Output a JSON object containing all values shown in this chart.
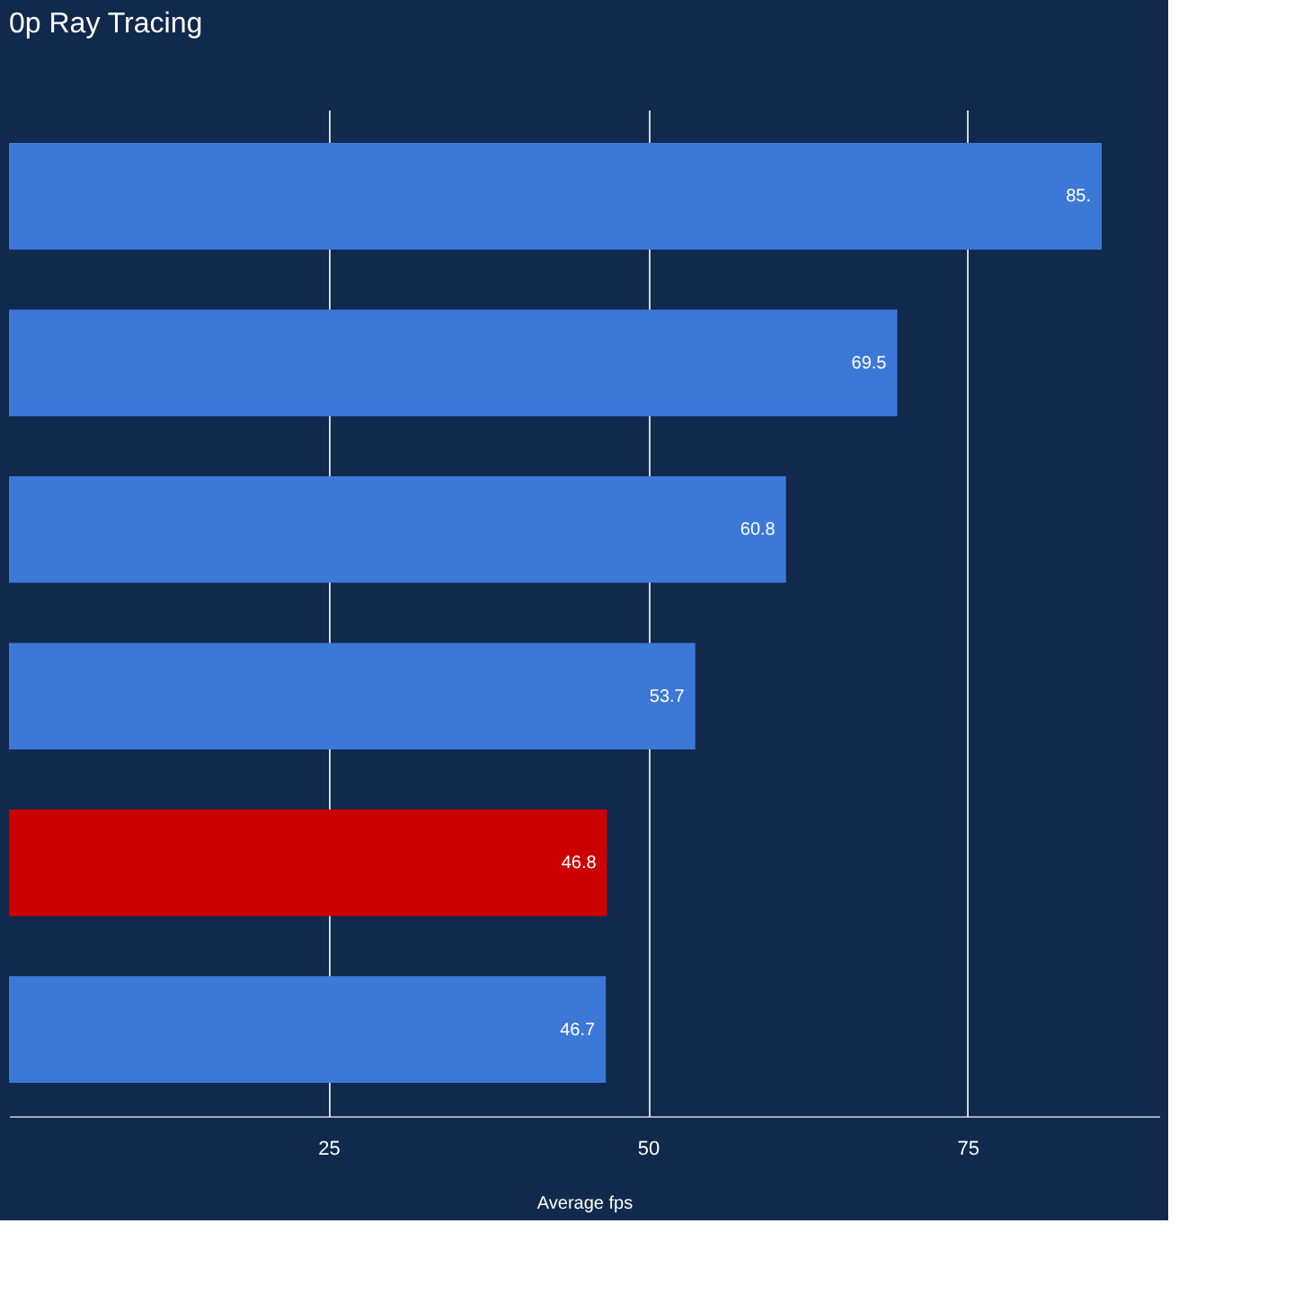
{
  "chart_data": {
    "type": "bar",
    "orientation": "horizontal",
    "title": "0p Ray Tracing",
    "xlabel": "Average fps",
    "categories": [
      null,
      null,
      null,
      null,
      null,
      null
    ],
    "values": [
      85.5,
      69.5,
      60.8,
      53.7,
      46.8,
      46.7
    ],
    "colors": [
      "#3c78d8",
      "#3c78d8",
      "#3c78d8",
      "#3c78d8",
      "#cc0000",
      "#3c78d8"
    ],
    "value_labels": [
      "85.",
      "69.5",
      "60.8",
      "53.7",
      "46.8",
      "46.7"
    ],
    "xlim": [
      0,
      90
    ],
    "xticks": [
      25,
      50,
      75
    ],
    "grid": "x",
    "tick_labels": "x"
  }
}
